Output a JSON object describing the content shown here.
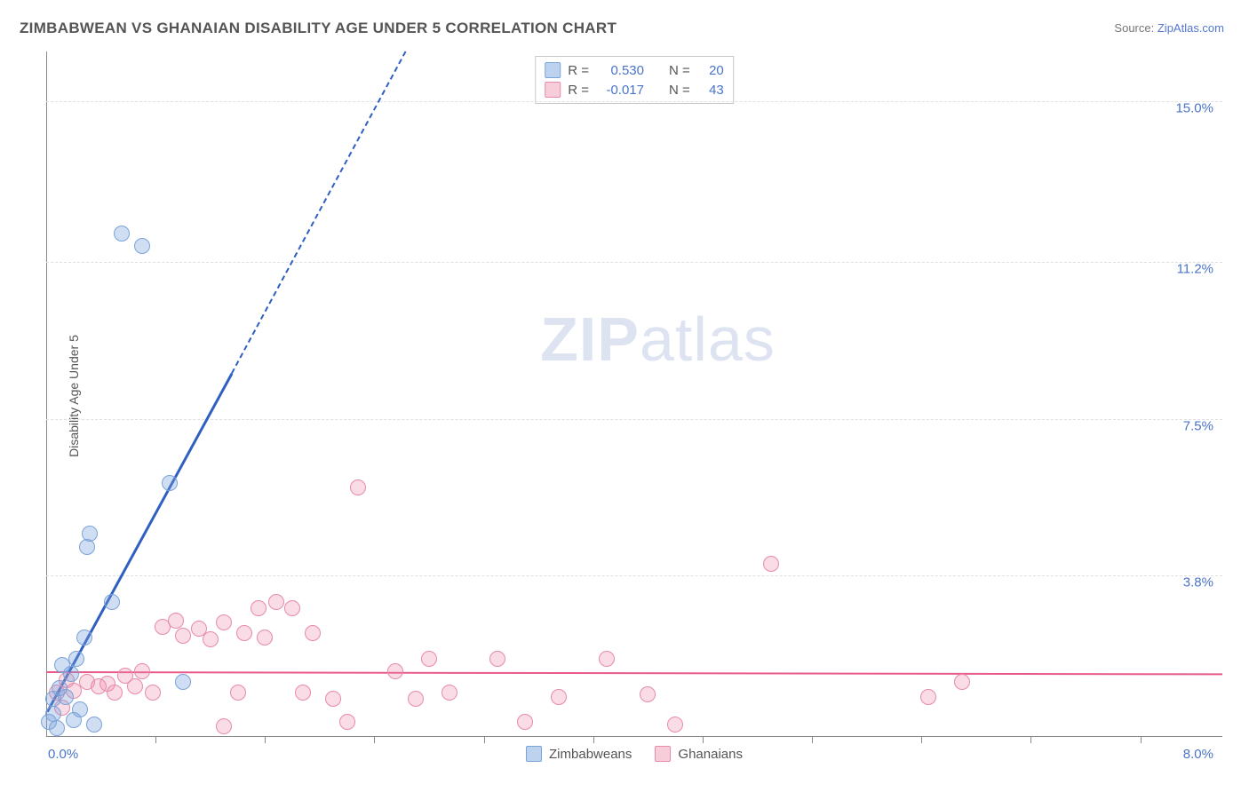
{
  "title": "ZIMBABWEAN VS GHANAIAN DISABILITY AGE UNDER 5 CORRELATION CHART",
  "source_label": "Source:",
  "source_name": "ZipAtlas.com",
  "ylabel": "Disability Age Under 5",
  "watermark_zip": "ZIP",
  "watermark_atlas": "atlas",
  "chart": {
    "type": "scatter",
    "xlim": [
      0,
      8.6
    ],
    "ylim": [
      0,
      16.2
    ],
    "x_origin_label": "0.0%",
    "x_max_label": "8.0%",
    "y_ticks": [
      {
        "v": 3.8,
        "label": "3.8%"
      },
      {
        "v": 7.5,
        "label": "7.5%"
      },
      {
        "v": 11.2,
        "label": "11.2%"
      },
      {
        "v": 15.0,
        "label": "15.0%"
      }
    ],
    "x_tick_positions": [
      0.8,
      1.6,
      2.4,
      3.2,
      4.0,
      4.8,
      5.6,
      6.4,
      7.2,
      8.0
    ],
    "grid_color": "#e0e0e0",
    "axis_color": "#888888",
    "background": "#ffffff",
    "marker_radius": 9,
    "marker_stroke_width": 1.5,
    "series": [
      {
        "name": "Zimbabweans",
        "r_label": "R =",
        "r_value": "0.530",
        "n_label": "N =",
        "n_value": "20",
        "fill": "rgba(120,160,220,0.35)",
        "stroke": "#7aa3d8",
        "swatch_fill": "#bcd2ee",
        "swatch_stroke": "#7aa3d8",
        "trend_color": "#2f5fc1",
        "trend_width_solid": 3,
        "trend_width_dashed": 2,
        "trend_solid": {
          "x1": 0.0,
          "y1": 0.6,
          "x2": 1.35,
          "y2": 8.6
        },
        "trend_dashed": {
          "x1": 1.35,
          "y1": 8.6,
          "x2": 2.62,
          "y2": 16.2
        },
        "points": [
          {
            "x": 0.02,
            "y": 0.35
          },
          {
            "x": 0.05,
            "y": 0.55
          },
          {
            "x": 0.05,
            "y": 0.9
          },
          {
            "x": 0.08,
            "y": 0.2
          },
          {
            "x": 0.1,
            "y": 1.15
          },
          {
            "x": 0.12,
            "y": 1.7
          },
          {
            "x": 0.14,
            "y": 0.95
          },
          {
            "x": 0.18,
            "y": 1.5
          },
          {
            "x": 0.2,
            "y": 0.4
          },
          {
            "x": 0.22,
            "y": 1.85
          },
          {
            "x": 0.25,
            "y": 0.65
          },
          {
            "x": 0.28,
            "y": 2.35
          },
          {
            "x": 0.3,
            "y": 4.5
          },
          {
            "x": 0.32,
            "y": 4.8
          },
          {
            "x": 0.35,
            "y": 0.3
          },
          {
            "x": 0.48,
            "y": 3.2
          },
          {
            "x": 0.55,
            "y": 11.9
          },
          {
            "x": 0.7,
            "y": 11.6
          },
          {
            "x": 0.9,
            "y": 6.0
          },
          {
            "x": 1.0,
            "y": 1.3
          }
        ]
      },
      {
        "name": "Ghanaians",
        "r_label": "R =",
        "r_value": "-0.017",
        "n_label": "N =",
        "n_value": "43",
        "fill": "rgba(235,140,170,0.30)",
        "stroke": "#e88aa8",
        "swatch_fill": "#f6cdd9",
        "swatch_stroke": "#e88aa8",
        "trend_color": "#e85a8a",
        "trend_width_solid": 2.5,
        "trend_solid": {
          "x1": 0.0,
          "y1": 1.55,
          "x2": 8.6,
          "y2": 1.5
        },
        "points": [
          {
            "x": 0.08,
            "y": 1.05
          },
          {
            "x": 0.12,
            "y": 0.7
          },
          {
            "x": 0.15,
            "y": 1.35
          },
          {
            "x": 0.2,
            "y": 1.1
          },
          {
            "x": 0.3,
            "y": 1.3
          },
          {
            "x": 0.38,
            "y": 1.2
          },
          {
            "x": 0.45,
            "y": 1.25
          },
          {
            "x": 0.5,
            "y": 1.05
          },
          {
            "x": 0.58,
            "y": 1.45
          },
          {
            "x": 0.65,
            "y": 1.2
          },
          {
            "x": 0.7,
            "y": 1.55
          },
          {
            "x": 0.78,
            "y": 1.05
          },
          {
            "x": 0.85,
            "y": 2.6
          },
          {
            "x": 0.95,
            "y": 2.75
          },
          {
            "x": 1.0,
            "y": 2.4
          },
          {
            "x": 1.12,
            "y": 2.55
          },
          {
            "x": 1.2,
            "y": 2.3
          },
          {
            "x": 1.3,
            "y": 2.7
          },
          {
            "x": 1.3,
            "y": 0.25
          },
          {
            "x": 1.4,
            "y": 1.05
          },
          {
            "x": 1.45,
            "y": 2.45
          },
          {
            "x": 1.55,
            "y": 3.05
          },
          {
            "x": 1.6,
            "y": 2.35
          },
          {
            "x": 1.68,
            "y": 3.2
          },
          {
            "x": 1.8,
            "y": 3.05
          },
          {
            "x": 1.88,
            "y": 1.05
          },
          {
            "x": 1.95,
            "y": 2.45
          },
          {
            "x": 2.1,
            "y": 0.9
          },
          {
            "x": 2.2,
            "y": 0.35
          },
          {
            "x": 2.28,
            "y": 5.9
          },
          {
            "x": 2.55,
            "y": 1.55
          },
          {
            "x": 2.7,
            "y": 0.9
          },
          {
            "x": 2.8,
            "y": 1.85
          },
          {
            "x": 2.95,
            "y": 1.05
          },
          {
            "x": 3.3,
            "y": 1.85
          },
          {
            "x": 3.5,
            "y": 0.35
          },
          {
            "x": 3.75,
            "y": 0.95
          },
          {
            "x": 4.1,
            "y": 1.85
          },
          {
            "x": 4.4,
            "y": 1.0
          },
          {
            "x": 4.6,
            "y": 0.3
          },
          {
            "x": 5.3,
            "y": 4.1
          },
          {
            "x": 6.45,
            "y": 0.95
          },
          {
            "x": 6.7,
            "y": 1.3
          }
        ]
      }
    ]
  }
}
